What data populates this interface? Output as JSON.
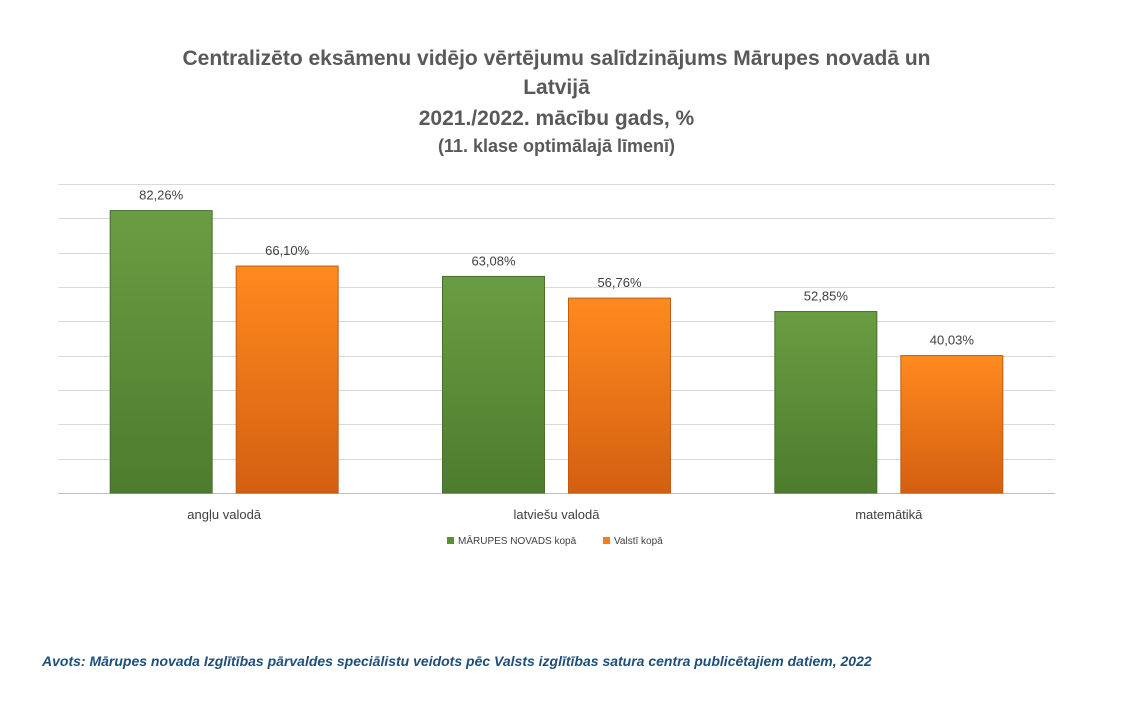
{
  "chart_data": {
    "type": "bar",
    "title_lines": [
      "Centralizēto eksāmenu vidējo vērtējumu salīdzinājums Mārupes novadā un",
      "Latvijā",
      "2021./2022. mācību gads, %",
      "(11. klase optimālajā līmenī)"
    ],
    "categories": [
      "angļu valodā",
      "latviešu valodā",
      "matemātikā"
    ],
    "series": [
      {
        "name": "MĀRUPES NOVADS kopā",
        "values": [
          82.26,
          63.08,
          52.85
        ],
        "labels": [
          "82,26%",
          "63,08%",
          "52,85%"
        ],
        "color": "#5b8f36"
      },
      {
        "name": "Valstī kopā",
        "values": [
          66.1,
          56.76,
          40.03
        ],
        "labels": [
          "66,10%",
          "56,76%",
          "40,03%"
        ],
        "color": "#f47d20"
      }
    ],
    "ylim": [
      0,
      90
    ],
    "grid": true,
    "legend_position": "bottom"
  },
  "source_note": "Avots: Mārupes novada Izglītības pārvaldes speciālistu veidots pēc Valsts izglītības satura centra publicētajiem datiem, 2022"
}
